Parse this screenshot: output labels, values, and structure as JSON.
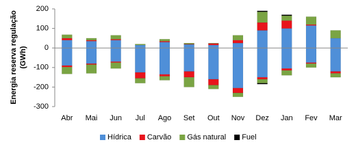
{
  "chart_data": {
    "type": "bar",
    "stacked": true,
    "y_label": [
      "Energia reserva regulação",
      "(GWh)"
    ],
    "categories": [
      "Abr",
      "Mai",
      "Jun",
      "Jul",
      "Ago",
      "Set",
      "Out",
      "Nov",
      "Dez",
      "Jan",
      "Fev",
      "Mar"
    ],
    "series": [
      {
        "name": "Hídrica",
        "color": "#4f8fd8",
        "values": [
          40,
          35,
          40,
          15,
          30,
          18,
          15,
          25,
          90,
          100,
          115,
          50
        ],
        "negative_values": [
          -90,
          -80,
          -70,
          -125,
          -135,
          -120,
          -160,
          -205,
          -150,
          -105,
          -75,
          -120
        ]
      },
      {
        "name": "Carvão",
        "color": "#e8141c",
        "values": [
          10,
          5,
          5,
          0,
          5,
          2,
          8,
          15,
          40,
          40,
          5,
          0
        ],
        "negative_values": [
          -8,
          -5,
          -5,
          -30,
          -10,
          -30,
          -30,
          -25,
          -10,
          -10,
          -5,
          -10
        ]
      },
      {
        "name": "Gás natural",
        "color": "#7aa443",
        "values": [
          18,
          10,
          20,
          5,
          10,
          5,
          2,
          25,
          55,
          25,
          40,
          40
        ],
        "negative_values": [
          -35,
          -45,
          -30,
          -25,
          -20,
          -50,
          -20,
          -20,
          -20,
          -25,
          -20,
          -20
        ]
      },
      {
        "name": "Fuel",
        "color": "#000000",
        "values": [
          0,
          0,
          0,
          0,
          0,
          0,
          0,
          0,
          5,
          5,
          0,
          0
        ],
        "negative_values": [
          0,
          0,
          0,
          0,
          0,
          0,
          0,
          0,
          -5,
          0,
          0,
          0
        ]
      }
    ],
    "ylim": [
      -300,
      200
    ],
    "yticks": [
      -300,
      -200,
      -100,
      0,
      100,
      200
    ],
    "legend": "bottom"
  }
}
